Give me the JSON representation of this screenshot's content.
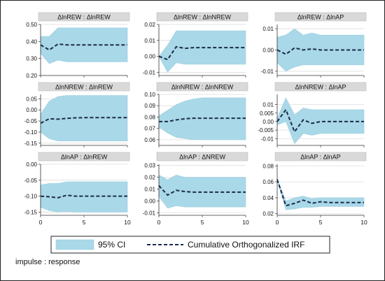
{
  "chart_data": {
    "type": "line",
    "x": [
      0,
      1,
      2,
      3,
      4,
      5,
      6,
      7,
      8,
      9,
      10
    ],
    "xticks": [
      0,
      5,
      10
    ],
    "legend": {
      "placement": "bottom",
      "ci_label": "95% CI",
      "line_label": "Cumulative Orthogonalized IRF"
    },
    "note": "impulse : response",
    "colors": {
      "ci_fill": "#a9d8e8",
      "ci_edge": "#9ccfe0",
      "irf_line": "#1a2b4d",
      "header_bg": "#d9d9d9",
      "grid": "#dddddd"
    },
    "panels": [
      {
        "title": "ΔlnREW : ΔlnREW",
        "ylim": [
          0.2,
          0.5
        ],
        "yticks": [
          0.2,
          0.3,
          0.4,
          0.5
        ],
        "yticklabels": [
          "0.20",
          "0.30",
          "0.40",
          "0.50"
        ],
        "irf": [
          0.38,
          0.35,
          0.385,
          0.38,
          0.38,
          0.38,
          0.38,
          0.38,
          0.38,
          0.38,
          0.38
        ],
        "lower": [
          0.33,
          0.27,
          0.29,
          0.28,
          0.28,
          0.28,
          0.28,
          0.28,
          0.28,
          0.28,
          0.28
        ],
        "upper": [
          0.43,
          0.43,
          0.48,
          0.48,
          0.48,
          0.48,
          0.48,
          0.48,
          0.48,
          0.48,
          0.48
        ]
      },
      {
        "title": "ΔlnREW : ΔlnNREW",
        "ylim": [
          -0.012,
          0.02
        ],
        "yticks": [
          -0.01,
          0.0,
          0.01,
          0.02
        ],
        "yticklabels": [
          "-0.01",
          "0.00",
          "0.01",
          "0.02"
        ],
        "irf": [
          0.0,
          -0.002,
          0.006,
          0.005,
          0.0055,
          0.0055,
          0.0055,
          0.0055,
          0.0055,
          0.0055,
          0.0055
        ],
        "lower": [
          0.0,
          -0.01,
          -0.004,
          -0.005,
          -0.005,
          -0.005,
          -0.005,
          -0.005,
          -0.005,
          -0.005,
          -0.005
        ],
        "upper": [
          0.0,
          0.007,
          0.016,
          0.016,
          0.016,
          0.016,
          0.016,
          0.016,
          0.016,
          0.016,
          0.016
        ]
      },
      {
        "title": "ΔlnREW : ΔlnAP",
        "ylim": [
          -0.012,
          0.012
        ],
        "yticks": [
          -0.01,
          0.0,
          0.01
        ],
        "yticklabels": [
          "-0.01",
          "0.00",
          "0.01"
        ],
        "irf": [
          0.0,
          -0.002,
          0.001,
          0.0,
          0.0005,
          0.0,
          0.0,
          0.0,
          0.0,
          0.0,
          0.0
        ],
        "lower": [
          -0.006,
          -0.01,
          -0.008,
          -0.007,
          -0.007,
          -0.007,
          -0.007,
          -0.007,
          -0.007,
          -0.007,
          -0.007
        ],
        "upper": [
          0.006,
          0.007,
          0.01,
          0.007,
          0.008,
          0.007,
          0.007,
          0.007,
          0.007,
          0.007,
          0.007
        ]
      },
      {
        "title": "ΔlnNREW : ΔlnREW",
        "ylim": [
          -0.16,
          0.07
        ],
        "yticks": [
          -0.15,
          -0.1,
          -0.05,
          0.0,
          0.05
        ],
        "yticklabels": [
          "-0.15",
          "-0.10",
          "-0.05",
          "0.00",
          "0.05"
        ],
        "irf": [
          -0.06,
          -0.04,
          -0.042,
          -0.038,
          -0.036,
          -0.035,
          -0.035,
          -0.035,
          -0.035,
          -0.035,
          -0.035
        ],
        "lower": [
          -0.1,
          -0.13,
          -0.14,
          -0.14,
          -0.14,
          -0.14,
          -0.14,
          -0.14,
          -0.14,
          -0.14,
          -0.14
        ],
        "upper": [
          -0.02,
          0.04,
          0.06,
          0.065,
          0.065,
          0.065,
          0.065,
          0.065,
          0.065,
          0.065,
          0.065
        ]
      },
      {
        "title": "ΔlnNREW : ΔlnNREW",
        "ylim": [
          0.055,
          0.1
        ],
        "yticks": [
          0.06,
          0.07,
          0.08,
          0.09,
          0.1
        ],
        "yticklabels": [
          "0.06",
          "0.07",
          "0.08",
          "0.09",
          "0.10"
        ],
        "irf": [
          0.076,
          0.076,
          0.0775,
          0.0785,
          0.079,
          0.079,
          0.079,
          0.079,
          0.079,
          0.079,
          0.079
        ],
        "lower": [
          0.071,
          0.066,
          0.062,
          0.061,
          0.06,
          0.06,
          0.06,
          0.06,
          0.06,
          0.06,
          0.06
        ],
        "upper": [
          0.081,
          0.086,
          0.091,
          0.094,
          0.096,
          0.097,
          0.097,
          0.097,
          0.097,
          0.097,
          0.097
        ]
      },
      {
        "title": "ΔlnNREW : ΔlnAP",
        "ylim": [
          -0.014,
          0.016
        ],
        "yticks": [
          -0.01,
          -0.005,
          0.0,
          0.005,
          0.01
        ],
        "yticklabels": [
          "-0.01",
          "-0.005",
          "0.00",
          "0.005",
          "0.01"
        ],
        "irf": [
          0.0,
          0.007,
          -0.006,
          0.001,
          -0.001,
          0.0,
          0.0,
          0.0,
          0.0,
          0.0,
          0.0
        ],
        "lower": [
          -0.002,
          0.0,
          -0.013,
          -0.007,
          -0.008,
          -0.007,
          -0.007,
          -0.007,
          -0.007,
          -0.007,
          -0.007
        ],
        "upper": [
          0.002,
          0.014,
          0.004,
          0.008,
          0.007,
          0.007,
          0.007,
          0.007,
          0.007,
          0.007,
          0.007
        ]
      },
      {
        "title": "ΔlnAP : ΔlnREW",
        "ylim": [
          -0.16,
          0.0
        ],
        "yticks": [
          -0.15,
          -0.1,
          -0.05,
          0.0
        ],
        "yticklabels": [
          "-0.15",
          "-0.10",
          "-0.05",
          "0.00"
        ],
        "irf": [
          -0.1,
          -0.102,
          -0.105,
          -0.097,
          -0.1,
          -0.1,
          -0.1,
          -0.1,
          -0.1,
          -0.1,
          -0.1
        ],
        "lower": [
          -0.135,
          -0.145,
          -0.15,
          -0.148,
          -0.15,
          -0.15,
          -0.15,
          -0.15,
          -0.15,
          -0.15,
          -0.15
        ],
        "upper": [
          -0.065,
          -0.06,
          -0.06,
          -0.055,
          -0.055,
          -0.055,
          -0.055,
          -0.055,
          -0.055,
          -0.055,
          -0.055
        ]
      },
      {
        "title": "ΔlnAP : ΔNREW",
        "ylim": [
          -0.012,
          0.031
        ],
        "yticks": [
          -0.01,
          0.0,
          0.01,
          0.02,
          0.03
        ],
        "yticklabels": [
          "-0.01",
          "0.00",
          "0.01",
          "0.02",
          "0.03"
        ],
        "irf": [
          0.013,
          0.005,
          0.009,
          0.008,
          0.0075,
          0.0075,
          0.0075,
          0.0075,
          0.0075,
          0.0075,
          0.0075
        ],
        "lower": [
          0.004,
          -0.006,
          -0.004,
          -0.005,
          -0.005,
          -0.005,
          -0.005,
          -0.005,
          -0.005,
          -0.005,
          -0.005
        ],
        "upper": [
          0.022,
          0.018,
          0.022,
          0.02,
          0.02,
          0.02,
          0.02,
          0.02,
          0.02,
          0.02,
          0.02
        ]
      },
      {
        "title": "ΔlnAP : ΔlnAP",
        "ylim": [
          0.018,
          0.082
        ],
        "yticks": [
          0.02,
          0.04,
          0.06,
          0.08
        ],
        "yticklabels": [
          "0.02",
          "0.04",
          "0.06",
          "0.08"
        ],
        "irf": [
          0.063,
          0.03,
          0.033,
          0.037,
          0.033,
          0.035,
          0.034,
          0.034,
          0.034,
          0.034,
          0.034
        ],
        "lower": [
          0.062,
          0.025,
          0.026,
          0.028,
          0.028,
          0.029,
          0.029,
          0.029,
          0.029,
          0.029,
          0.029
        ],
        "upper": [
          0.064,
          0.036,
          0.04,
          0.042,
          0.039,
          0.04,
          0.04,
          0.04,
          0.04,
          0.04,
          0.04
        ]
      }
    ]
  }
}
